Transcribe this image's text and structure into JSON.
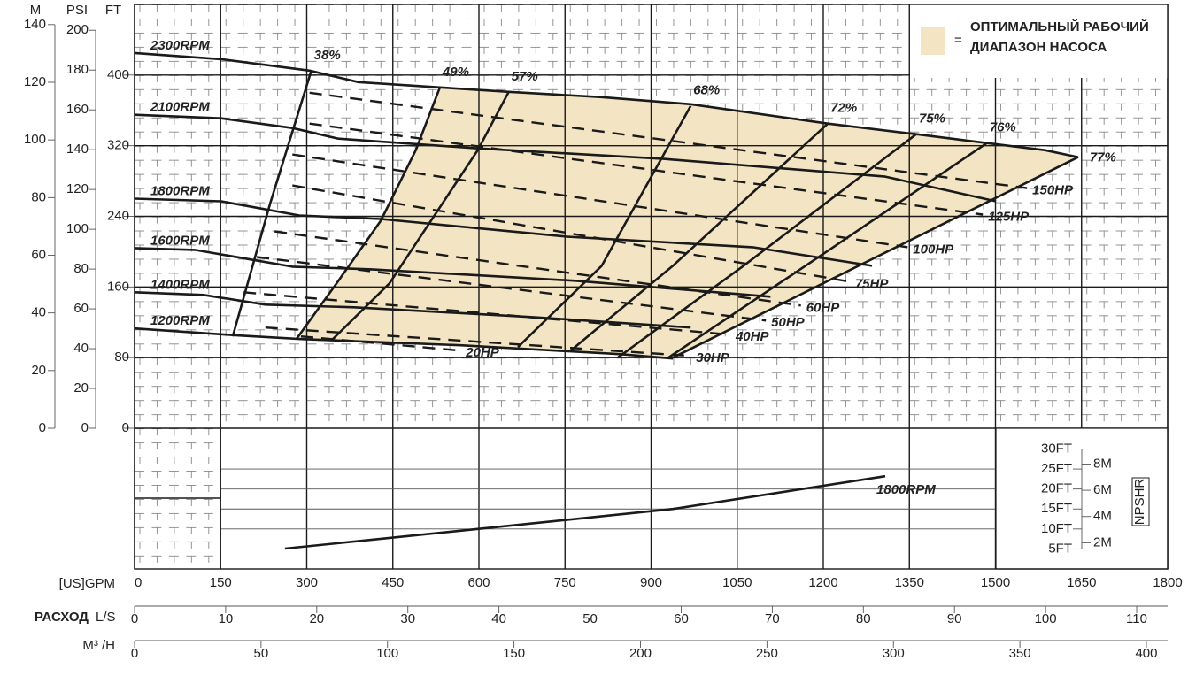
{
  "chart_data": {
    "type": "pump-curve",
    "xlim": [
      0,
      1800
    ],
    "xticks": [
      0,
      150,
      300,
      450,
      600,
      750,
      900,
      1050,
      1200,
      1350,
      1500,
      1650,
      1800
    ],
    "x_label": "[US]GPM",
    "ylim": [
      0,
      480
    ],
    "yticks": [
      0,
      80,
      160,
      240,
      320,
      400
    ],
    "y_label": "FT",
    "m_axis": {
      "label": "M",
      "lim": [
        0,
        147
      ],
      "ticks": [
        0,
        20,
        40,
        60,
        80,
        100,
        120,
        140
      ]
    },
    "psi_axis": {
      "label": "PSI",
      "lim": [
        0,
        213
      ],
      "ticks": [
        0,
        20,
        40,
        60,
        80,
        100,
        120,
        140,
        160,
        180,
        200
      ]
    },
    "flow_label": "РАСХОД",
    "ls_axis": {
      "label": "L/S",
      "lim": [
        0,
        113.4
      ],
      "ticks": [
        0,
        10,
        20,
        30,
        40,
        50,
        60,
        70,
        80,
        90,
        100,
        110
      ]
    },
    "m3h_axis": {
      "label": "M³ /H",
      "lim": [
        0,
        408.4
      ],
      "ticks": [
        0,
        50,
        100,
        150,
        200,
        250,
        300,
        350,
        400
      ]
    },
    "series": [
      {
        "name": "2300RPM",
        "x": [
          0,
          151,
          305,
          390,
          532,
          652,
          814,
          969,
          1208,
          1362,
          1485,
          1586,
          1644
        ],
        "values": [
          425,
          418,
          405,
          392,
          386,
          381,
          375,
          367,
          345,
          333,
          323,
          315,
          307
        ]
      },
      {
        "name": "2100RPM",
        "x": [
          0,
          151,
          275,
          355,
          598,
          922,
          1308,
          1501
        ],
        "values": [
          355,
          351,
          340,
          328,
          317,
          305,
          285,
          257
        ]
      },
      {
        "name": "1800RPM",
        "x": [
          0,
          151,
          287,
          429,
          753,
          1077,
          1285
        ],
        "values": [
          260,
          257,
          241,
          237,
          217,
          205,
          184
        ]
      },
      {
        "name": "1600RPM",
        "x": [
          0,
          105,
          275,
          413,
          768,
          1108
        ],
        "values": [
          204,
          202,
          183,
          180,
          167,
          149
        ]
      },
      {
        "name": "1400RPM",
        "x": [
          0,
          120,
          228,
          383,
          691,
          969
        ],
        "values": [
          154,
          151,
          140,
          137,
          126,
          114
        ]
      },
      {
        "name": "1200RPM",
        "x": [
          0,
          182,
          290,
          568,
          845,
          938
        ],
        "values": [
          113,
          105,
          101,
          94,
          84,
          79
        ]
      }
    ],
    "efficiency": [
      {
        "name": "38%",
        "x": [
          171,
          236,
          308
        ],
        "values": [
          104,
          254,
          405
        ]
      },
      {
        "name": "49%",
        "x": [
          282,
          352,
          429,
          490,
          532
        ],
        "values": [
          101,
          164,
          235,
          315,
          386
        ]
      },
      {
        "name": "57%",
        "x": [
          344,
          444,
          598,
          652
        ],
        "values": [
          100,
          164,
          315,
          381
        ]
      },
      {
        "name": "68%",
        "x": [
          668,
          814,
          969
        ],
        "values": [
          92,
          184,
          365
        ]
      },
      {
        "name": "72%",
        "x": [
          760,
          938,
          1208
        ],
        "values": [
          88,
          184,
          345
        ]
      },
      {
        "name": "75%",
        "x": [
          842,
          1061,
          1362
        ],
        "values": [
          80,
          184,
          333
        ]
      },
      {
        "name": "76%",
        "x": [
          930,
          1215,
          1485
        ],
        "values": [
          80,
          204,
          323
        ]
      },
      {
        "name": "77%",
        "x": [
          938,
          1644
        ],
        "values": [
          80,
          307
        ]
      }
    ],
    "power": [
      {
        "name": "150HP",
        "x": [
          305,
          1555
        ],
        "values": [
          380,
          272
        ]
      },
      {
        "name": "125HP",
        "x": [
          305,
          1478
        ],
        "values": [
          345,
          242
        ]
      },
      {
        "name": "100HP",
        "x": [
          275,
          1347
        ],
        "values": [
          310,
          205
        ]
      },
      {
        "name": "75HP",
        "x": [
          275,
          1246
        ],
        "values": [
          275,
          166
        ]
      },
      {
        "name": "60HP",
        "x": [
          244,
          1161
        ],
        "values": [
          223,
          139
        ]
      },
      {
        "name": "50HP",
        "x": [
          213,
          1100
        ],
        "values": [
          194,
          122
        ]
      },
      {
        "name": "40HP",
        "x": [
          190,
          1038
        ],
        "values": [
          154,
          106
        ]
      },
      {
        "name": "30HP",
        "x": [
          228,
          969
        ],
        "values": [
          114,
          82
        ]
      },
      {
        "name": "20HP",
        "x": [
          290,
          568
        ],
        "values": [
          104,
          88
        ]
      }
    ],
    "npshr": {
      "label": "NPSHR",
      "name": "1800RPM",
      "x": [
        262,
        598,
        938,
        1308
      ],
      "values": [
        5.1,
        10,
        15,
        23.2
      ],
      "ylim": [
        0,
        35.2
      ],
      "yticks": [
        {
          "value": 5,
          "label": "5FT"
        },
        {
          "value": 10,
          "label": "10FT"
        },
        {
          "value": 15,
          "label": "15FT"
        },
        {
          "value": 20,
          "label": "20FT"
        },
        {
          "value": 25,
          "label": "25FT"
        },
        {
          "value": 30,
          "label": "30FT"
        }
      ],
      "m_lim": [
        0,
        10.73
      ],
      "m_ticks": [
        {
          "value": 2,
          "label": "2M"
        },
        {
          "value": 4,
          "label": "4M"
        },
        {
          "value": 6,
          "label": "6M"
        },
        {
          "value": 8,
          "label": "8M"
        }
      ]
    },
    "legend": {
      "symbol": "=",
      "lines": [
        "ОПТИМАЛЬНЫЙ РАБОЧИЙ",
        "ДИАПАЗОН НАСОСА"
      ],
      "color": "#f3e5c4"
    }
  }
}
